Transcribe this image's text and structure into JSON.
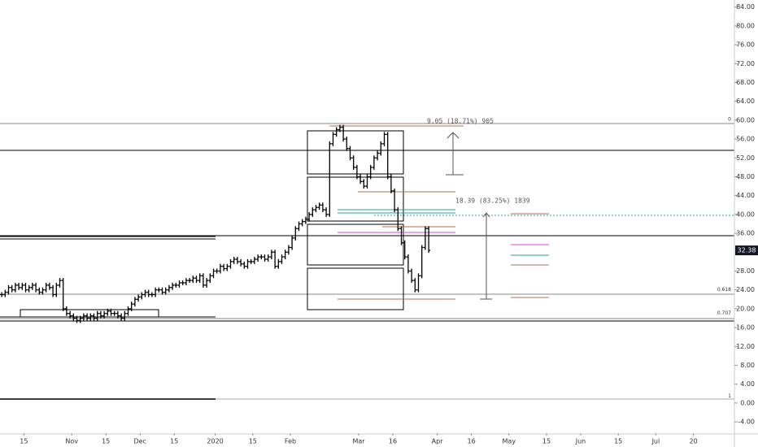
{
  "chart_data": {
    "type": "ohlc",
    "xlim": [
      0,
      215
    ],
    "ylim": [
      -6.4,
      85.5
    ],
    "yticks": [
      {
        "value": 84,
        "label": "84.00"
      },
      {
        "value": 80,
        "label": "80.00"
      },
      {
        "value": 76,
        "label": "76.00"
      },
      {
        "value": 72,
        "label": "72.00"
      },
      {
        "value": 68,
        "label": "68.00"
      },
      {
        "value": 64,
        "label": "64.00"
      },
      {
        "value": 60,
        "label": "60.00"
      },
      {
        "value": 56,
        "label": "56.00"
      },
      {
        "value": 52,
        "label": "52.00"
      },
      {
        "value": 48,
        "label": "48.00"
      },
      {
        "value": 44,
        "label": "44.00"
      },
      {
        "value": 40,
        "label": "40.00"
      },
      {
        "value": 36,
        "label": "36.00"
      },
      {
        "value": 28,
        "label": "28.00"
      },
      {
        "value": 24,
        "label": "24.00"
      },
      {
        "value": 20,
        "label": "20.00"
      },
      {
        "value": 16,
        "label": "16.00"
      },
      {
        "value": 12,
        "label": "12.00"
      },
      {
        "value": 8,
        "label": "8.00"
      },
      {
        "value": 4,
        "label": "4.00"
      },
      {
        "value": 0,
        "label": "0.00"
      },
      {
        "value": -4,
        "label": "-4.00"
      }
    ],
    "xticks": [
      {
        "value": 7,
        "label": "15"
      },
      {
        "value": 21,
        "label": "Nov"
      },
      {
        "value": 31,
        "label": "15"
      },
      {
        "value": 41,
        "label": "Dec"
      },
      {
        "value": 51,
        "label": "15"
      },
      {
        "value": 63,
        "label": "2020"
      },
      {
        "value": 74,
        "label": "15"
      },
      {
        "value": 85,
        "label": "Feb"
      },
      {
        "value": 105,
        "label": "Mar"
      },
      {
        "value": 115,
        "label": "16"
      },
      {
        "value": 128,
        "label": "Apr"
      },
      {
        "value": 138,
        "label": "16"
      },
      {
        "value": 149,
        "label": "May"
      },
      {
        "value": 160,
        "label": "15"
      },
      {
        "value": 170,
        "label": "Jun"
      },
      {
        "value": 181,
        "label": "15"
      },
      {
        "value": 192,
        "label": "Jul"
      },
      {
        "value": 203,
        "label": "20"
      }
    ],
    "color": "#000000",
    "values": [
      23,
      23.5,
      24.5,
      24,
      25,
      24.5,
      25,
      24,
      24.5,
      25,
      24,
      23.5,
      24,
      25,
      24.5,
      23,
      25,
      26,
      20,
      19,
      18.5,
      18,
      17.5,
      18,
      18.5,
      18,
      18.5,
      18,
      19,
      18.5,
      19,
      19.5,
      19,
      19,
      18.5,
      18,
      19,
      20,
      21,
      22,
      22.5,
      23,
      23.5,
      23,
      23,
      24,
      24,
      23.5,
      24,
      24.5,
      25,
      25,
      25.5,
      25.5,
      26,
      26,
      26.5,
      26,
      27,
      25,
      26,
      27,
      28,
      28,
      29,
      28.5,
      29,
      30,
      30.5,
      30,
      29.5,
      29,
      30,
      30,
      30.5,
      31,
      31,
      30.5,
      31,
      32,
      29,
      30,
      31,
      32,
      33,
      35,
      37,
      38,
      38.5,
      39,
      40,
      41,
      41.5,
      42,
      41,
      40,
      55,
      57,
      58,
      58.5,
      56,
      54,
      52,
      50,
      48,
      47,
      46,
      48,
      50,
      52,
      53,
      55,
      57,
      48,
      45,
      41,
      37,
      34,
      31,
      28,
      26,
      24,
      27,
      33,
      37,
      32.38
    ],
    "last_price": 32.38,
    "levels": [
      {
        "value": 59.5,
        "label": "0"
      },
      {
        "value": 23.3,
        "label": "0.618"
      },
      {
        "value": 18.3,
        "label": "0.707"
      },
      {
        "value": 0.75,
        "label": "1"
      }
    ],
    "annotations": [
      "9.05 (18.71%) 905",
      "18.39 (83.25%) 1839"
    ]
  }
}
